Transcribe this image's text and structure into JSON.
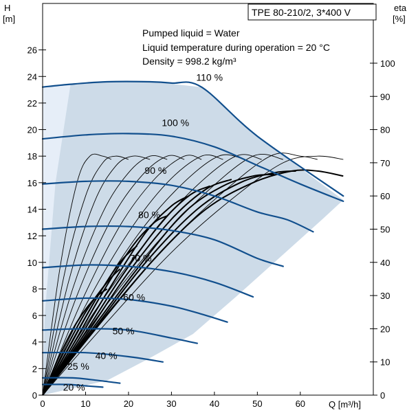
{
  "chart_data": {
    "type": "line",
    "title": "TPE 80-210/2, 3*400 V",
    "annotations": [
      "Pumped liquid = Water",
      "Liquid temperature during operation = 20 °C",
      "Density = 998.2 kg/m³"
    ],
    "x_axis": {
      "label": "Q [m³/h]",
      "range": [
        0,
        77
      ],
      "ticks": [
        0,
        10,
        20,
        30,
        40,
        50,
        60
      ]
    },
    "y_axis_left": {
      "label_top": "H",
      "label_unit": "[m]",
      "range": [
        0,
        29.5
      ],
      "ticks": [
        0,
        2,
        4,
        6,
        8,
        10,
        12,
        14,
        16,
        18,
        20,
        22,
        24,
        26
      ]
    },
    "y_axis_right": {
      "label_top": "eta",
      "label_unit": "[%]",
      "range": [
        0,
        118
      ],
      "ticks": [
        0,
        10,
        20,
        30,
        40,
        50,
        60,
        70,
        80,
        90,
        100
      ]
    },
    "envelope": {
      "outer": [
        [
          0,
          0
        ],
        [
          0,
          23.2
        ],
        [
          6,
          23.4
        ],
        [
          15,
          23.6
        ],
        [
          25,
          23.6
        ],
        [
          37,
          23.2
        ],
        [
          50,
          19.5
        ],
        [
          70,
          14.7
        ],
        [
          65,
          13.2
        ],
        [
          55,
          10.3
        ],
        [
          45,
          7.4
        ],
        [
          35,
          4.6
        ],
        [
          25,
          2.8
        ],
        [
          15,
          1.1
        ],
        [
          0,
          0
        ]
      ],
      "light_band": [
        [
          0,
          0
        ],
        [
          0,
          23.2
        ],
        [
          6.5,
          23.4
        ],
        [
          3,
          16
        ],
        [
          0.5,
          6
        ]
      ]
    },
    "head_curves": [
      {
        "label": "110 %",
        "points": [
          [
            0,
            23.2
          ],
          [
            6,
            23.4
          ],
          [
            15,
            23.6
          ],
          [
            25,
            23.6
          ],
          [
            30,
            23.5
          ],
          [
            37,
            23.2
          ],
          [
            50,
            19.5
          ],
          [
            70,
            15.0
          ]
        ]
      },
      {
        "label": "100 %",
        "points": [
          [
            0,
            19.3
          ],
          [
            10,
            19.6
          ],
          [
            20,
            19.7
          ],
          [
            30,
            19.5
          ],
          [
            40,
            18.7
          ],
          [
            50,
            17.3
          ],
          [
            60,
            15.9
          ],
          [
            70,
            14.6
          ]
        ]
      },
      {
        "label": "90 %",
        "points": [
          [
            0,
            15.9
          ],
          [
            10,
            16.1
          ],
          [
            20,
            16.1
          ],
          [
            30,
            15.8
          ],
          [
            40,
            15.0
          ],
          [
            50,
            13.8
          ],
          [
            57,
            13.2
          ],
          [
            63,
            12.3
          ]
        ]
      },
      {
        "label": "80 %",
        "points": [
          [
            0,
            12.5
          ],
          [
            10,
            12.7
          ],
          [
            20,
            12.7
          ],
          [
            30,
            12.4
          ],
          [
            40,
            11.7
          ],
          [
            50,
            10.3
          ],
          [
            56,
            9.7
          ]
        ]
      },
      {
        "label": "70 %",
        "points": [
          [
            0,
            9.6
          ],
          [
            10,
            9.8
          ],
          [
            20,
            9.7
          ],
          [
            30,
            9.3
          ],
          [
            40,
            8.5
          ],
          [
            49,
            7.4
          ]
        ]
      },
      {
        "label": "60 %",
        "points": [
          [
            0,
            7.1
          ],
          [
            10,
            7.3
          ],
          [
            20,
            7.2
          ],
          [
            30,
            6.7
          ],
          [
            37,
            6.1
          ],
          [
            43,
            5.5
          ]
        ]
      },
      {
        "label": "50 %",
        "points": [
          [
            0,
            4.9
          ],
          [
            10,
            5.0
          ],
          [
            20,
            4.9
          ],
          [
            30,
            4.3
          ],
          [
            36,
            3.9
          ]
        ]
      },
      {
        "label": "40 %",
        "points": [
          [
            0,
            3.2
          ],
          [
            10,
            3.2
          ],
          [
            20,
            2.9
          ],
          [
            28,
            2.5
          ]
        ]
      },
      {
        "label": "25 %",
        "points": [
          [
            0,
            1.3
          ],
          [
            7,
            1.3
          ],
          [
            13,
            1.1
          ],
          [
            18,
            0.9
          ]
        ]
      },
      {
        "label": "20 %",
        "points": [
          [
            0,
            0.8
          ],
          [
            6,
            0.8
          ],
          [
            10,
            0.7
          ],
          [
            14,
            0.6
          ]
        ]
      }
    ],
    "efficiency_curves": [
      {
        "width": "thin",
        "points": [
          [
            0,
            0
          ],
          [
            4,
            38
          ],
          [
            8,
            64
          ],
          [
            11,
            72
          ],
          [
            14,
            72
          ],
          [
            16,
            71
          ]
        ]
      },
      {
        "width": "thin",
        "points": [
          [
            0,
            0
          ],
          [
            5,
            36
          ],
          [
            10,
            60
          ],
          [
            14,
            70
          ],
          [
            17,
            72
          ],
          [
            20,
            71
          ]
        ]
      },
      {
        "width": "thin",
        "points": [
          [
            0,
            0
          ],
          [
            6,
            34
          ],
          [
            12,
            58
          ],
          [
            17,
            69
          ],
          [
            21,
            72
          ],
          [
            25,
            71
          ]
        ]
      },
      {
        "width": "thin",
        "points": [
          [
            0,
            0
          ],
          [
            7,
            32
          ],
          [
            14,
            55
          ],
          [
            20,
            67
          ],
          [
            25,
            72
          ],
          [
            29,
            71
          ]
        ]
      },
      {
        "width": "thin",
        "points": [
          [
            0,
            0
          ],
          [
            8,
            30
          ],
          [
            16,
            53
          ],
          [
            23,
            66
          ],
          [
            29,
            72
          ],
          [
            33,
            71
          ]
        ]
      },
      {
        "width": "thin",
        "points": [
          [
            0,
            0
          ],
          [
            9,
            28
          ],
          [
            18,
            51
          ],
          [
            26,
            65
          ],
          [
            33,
            72
          ],
          [
            37,
            71
          ]
        ]
      },
      {
        "width": "thin",
        "points": [
          [
            0,
            0
          ],
          [
            10,
            27
          ],
          [
            20,
            49
          ],
          [
            29,
            64
          ],
          [
            37,
            72
          ],
          [
            42,
            71
          ]
        ]
      },
      {
        "width": "thin",
        "points": [
          [
            0,
            0
          ],
          [
            11,
            26
          ],
          [
            22,
            48
          ],
          [
            32,
            63
          ],
          [
            41,
            72
          ],
          [
            47,
            71
          ]
        ]
      },
      {
        "width": "thin",
        "points": [
          [
            0,
            0
          ],
          [
            12,
            25
          ],
          [
            24,
            46
          ],
          [
            35,
            62
          ],
          [
            45,
            72
          ],
          [
            51,
            71
          ]
        ]
      },
      {
        "width": "thin",
        "points": [
          [
            0,
            0
          ],
          [
            13,
            24
          ],
          [
            26,
            45
          ],
          [
            38,
            61
          ],
          [
            49,
            72
          ],
          [
            56,
            71
          ]
        ]
      },
      {
        "width": "thin",
        "points": [
          [
            0,
            0
          ],
          [
            14,
            23
          ],
          [
            28,
            44
          ],
          [
            41,
            60
          ],
          [
            53,
            72
          ],
          [
            60,
            72
          ],
          [
            64,
            71
          ]
        ]
      },
      {
        "width": "thin",
        "points": [
          [
            0,
            0
          ],
          [
            15,
            22
          ],
          [
            30,
            43
          ],
          [
            44,
            59
          ],
          [
            56,
            70
          ],
          [
            64,
            72
          ],
          [
            70,
            71
          ]
        ]
      },
      {
        "width": "thick",
        "points": [
          [
            0,
            0
          ],
          [
            4,
            12
          ],
          [
            8,
            22
          ],
          [
            12,
            29
          ],
          [
            15,
            32
          ]
        ]
      },
      {
        "width": "thick",
        "points": [
          [
            0,
            0
          ],
          [
            5,
            13
          ],
          [
            10,
            25
          ],
          [
            15,
            34
          ],
          [
            18,
            38
          ]
        ]
      },
      {
        "width": "thick",
        "points": [
          [
            0,
            0
          ],
          [
            6,
            14
          ],
          [
            12,
            28
          ],
          [
            18,
            40
          ],
          [
            22,
            45
          ]
        ]
      },
      {
        "width": "thick",
        "points": [
          [
            0,
            0
          ],
          [
            7,
            15
          ],
          [
            14,
            31
          ],
          [
            21,
            45
          ],
          [
            26,
            52
          ],
          [
            29,
            54
          ]
        ]
      },
      {
        "width": "thick",
        "points": [
          [
            0,
            0
          ],
          [
            8,
            16
          ],
          [
            16,
            33
          ],
          [
            24,
            49
          ],
          [
            30,
            57
          ],
          [
            34,
            60
          ]
        ]
      },
      {
        "width": "thick",
        "points": [
          [
            0,
            0
          ],
          [
            9,
            17
          ],
          [
            18,
            35
          ],
          [
            27,
            51
          ],
          [
            34,
            60
          ],
          [
            39,
            63
          ]
        ]
      },
      {
        "width": "thick",
        "points": [
          [
            0,
            0
          ],
          [
            10,
            18
          ],
          [
            20,
            37
          ],
          [
            30,
            53
          ],
          [
            38,
            62
          ],
          [
            44,
            65
          ]
        ]
      },
      {
        "width": "thick",
        "points": [
          [
            0,
            0
          ],
          [
            11,
            19
          ],
          [
            22,
            38
          ],
          [
            33,
            55
          ],
          [
            42,
            63
          ],
          [
            49,
            66
          ],
          [
            54,
            66.5
          ]
        ]
      },
      {
        "width": "thick",
        "points": [
          [
            0,
            0
          ],
          [
            12,
            20
          ],
          [
            24,
            40
          ],
          [
            36,
            56
          ],
          [
            46,
            64
          ],
          [
            54,
            67
          ],
          [
            59,
            67.5
          ]
        ]
      },
      {
        "width": "thick",
        "points": [
          [
            0,
            0
          ],
          [
            13,
            21
          ],
          [
            26,
            41
          ],
          [
            38,
            56
          ],
          [
            49,
            64
          ],
          [
            58,
            67.5
          ],
          [
            64,
            67.5
          ],
          [
            70,
            66
          ]
        ]
      }
    ]
  }
}
